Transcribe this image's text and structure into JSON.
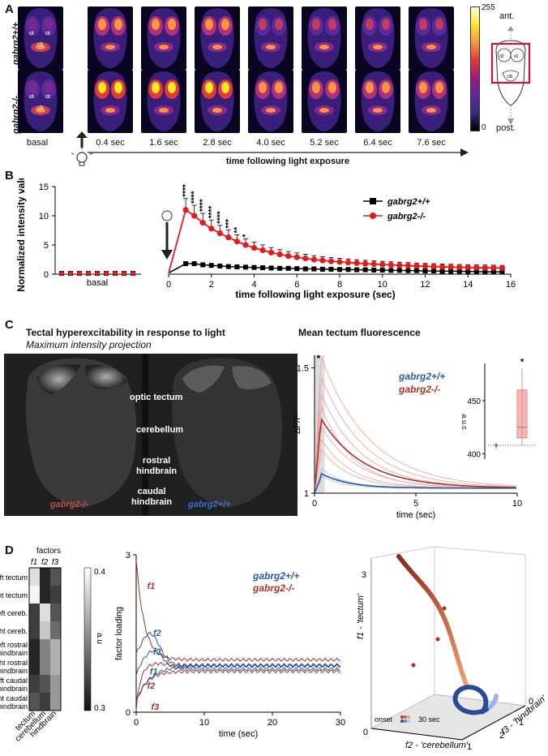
{
  "panels": {
    "a": "A",
    "b": "B",
    "c": "C",
    "d": "D"
  },
  "panel_a": {
    "row_labels": [
      "gabrg2+/+",
      "gabrg2-/-"
    ],
    "time_labels": [
      "basal",
      "0.4 sec",
      "1.6 sec",
      "2.8 sec",
      "4.0 sec",
      "5.2 sec",
      "6.4 sec",
      "7.6 sec"
    ],
    "axis_label": "time following light exposure",
    "colorbar": {
      "max": "255",
      "min": "0"
    },
    "region_labels": {
      "ot": "ot",
      "cb": "cb"
    },
    "schematic": {
      "top": "ant.",
      "bottom": "post.",
      "ot": "ot",
      "cb": "cb"
    },
    "colors": {
      "frame": "#d0103a"
    }
  },
  "panel_b": {
    "chart_data": {
      "type": "line",
      "ylabel": "Normalized intensity value",
      "xlabel": "time following light exposure (sec)",
      "basal_label": "basal",
      "ylim": [
        0,
        15
      ],
      "xlim": [
        0,
        16
      ],
      "yticks": [
        "0",
        "5",
        "10",
        "15"
      ],
      "xticks": [
        "0",
        "2",
        "4",
        "6",
        "8",
        "10",
        "12",
        "14",
        "16"
      ],
      "series": [
        {
          "name": "gabrg2+/+",
          "color": "#000000",
          "x": [
            0.8,
            1.2,
            1.6,
            2.0,
            2.4,
            2.8,
            3.2,
            3.6,
            4.0,
            4.4,
            4.8,
            5.2,
            5.6,
            6.0,
            6.4,
            6.8,
            7.2,
            7.6,
            8.0,
            8.4,
            8.8,
            9.2,
            9.6,
            10.0,
            10.4,
            10.8,
            11.2,
            11.6,
            12.0,
            12.4,
            12.8,
            13.2,
            13.6,
            14.0,
            14.4,
            14.8,
            15.2,
            15.6
          ],
          "y": [
            1.8,
            1.8,
            1.6,
            1.5,
            1.4,
            1.3,
            1.25,
            1.2,
            1.15,
            1.1,
            1.05,
            1.0,
            1.0,
            0.95,
            0.9,
            0.9,
            0.85,
            0.85,
            0.8,
            0.8,
            0.75,
            0.75,
            0.7,
            0.7,
            0.65,
            0.65,
            0.6,
            0.6,
            0.55,
            0.55,
            0.5,
            0.5,
            0.5,
            0.45,
            0.45,
            0.4,
            0.4,
            0.4
          ]
        },
        {
          "name": "gabrg2-/-",
          "color": "#e41a1c",
          "x": [
            0.8,
            1.2,
            1.6,
            2.0,
            2.4,
            2.8,
            3.2,
            3.6,
            4.0,
            4.4,
            4.8,
            5.2,
            5.6,
            6.0,
            6.4,
            6.8,
            7.2,
            7.6,
            8.0,
            8.4,
            8.8,
            9.2,
            9.6,
            10.0,
            10.4,
            10.8,
            11.2,
            11.6,
            12.0,
            12.4,
            12.8,
            13.2,
            13.6,
            14.0,
            14.4,
            14.8,
            15.2,
            15.6
          ],
          "y": [
            11.0,
            10.0,
            8.8,
            7.8,
            7.0,
            6.3,
            5.6,
            5.0,
            4.5,
            4.1,
            3.7,
            3.4,
            3.1,
            2.9,
            2.7,
            2.5,
            2.35,
            2.2,
            2.1,
            2.0,
            1.9,
            1.8,
            1.72,
            1.65,
            1.58,
            1.52,
            1.46,
            1.4,
            1.35,
            1.3,
            1.26,
            1.22,
            1.18,
            1.15,
            1.12,
            1.1,
            1.08,
            1.05
          ]
        }
      ],
      "significance": [
        "****",
        "****",
        "****",
        "****",
        "****",
        "***",
        "**",
        "*"
      ]
    }
  },
  "panel_c": {
    "title": "Tectal hyperexcitability in response to light",
    "subtitle": "Maximum intensity projection",
    "labels": [
      "optic tectum",
      "cerebellum",
      "rostral\nhindbrain",
      "caudal\nhindbrain"
    ],
    "left_geno": "gabrg2-/-",
    "right_geno": "gabrg2+/+",
    "chart_data": {
      "type": "line",
      "title": "Mean tectum fluorescence",
      "ylabel": "ΔF/F",
      "xlabel": "time (sec)",
      "xticks": [
        "0",
        "5",
        "10"
      ],
      "yticks": [
        "1",
        "1.5"
      ],
      "legend": [
        "gabrg2+/+",
        "gabrg2-/-"
      ],
      "colors": {
        "wt": "#2c5aa0",
        "ko": "#a93226"
      },
      "sig": "*",
      "inset": {
        "ylabel": "a.u.c",
        "yticks": [
          "400",
          "450"
        ],
        "sig": "*"
      }
    }
  },
  "panel_d": {
    "heatmap": {
      "title": "factors",
      "cols": [
        "f1",
        "f2",
        "f3"
      ],
      "rows": [
        "left tectum",
        "right tectum",
        "left cereb.",
        "right cereb.",
        "left rostral hindbrain",
        "right rostral hindbrain",
        "left caudal hindbrain",
        "right caudal hindbrain"
      ],
      "bottom_labels": [
        "tectum",
        "cerebellum",
        "hindbrain"
      ],
      "colorbar": {
        "max": "0.4",
        "min": "0.3",
        "label": "a.u"
      },
      "values": [
        [
          0.39,
          0.31,
          0.33
        ],
        [
          0.4,
          0.31,
          0.32
        ],
        [
          0.32,
          0.39,
          0.33
        ],
        [
          0.32,
          0.38,
          0.34
        ],
        [
          0.31,
          0.35,
          0.37
        ],
        [
          0.31,
          0.35,
          0.37
        ],
        [
          0.32,
          0.33,
          0.36
        ],
        [
          0.33,
          0.32,
          0.36
        ]
      ]
    },
    "chart_data": {
      "type": "line",
      "ylabel": "factor loading",
      "xlabel": "time (sec)",
      "xticks": [
        "0",
        "10",
        "20",
        "30"
      ],
      "yticks": [
        "0",
        "3"
      ],
      "legend": [
        "gabrg2+/+",
        "gabrg2-/-"
      ],
      "curve_labels": {
        "f1": "f1",
        "f2": "f2",
        "f3": "f3"
      }
    },
    "plot3d": {
      "z_label": "f1 - 'tectum'",
      "x_label": "f2 - 'cerebellum'",
      "y_label": "f3 - 'hindbrain'",
      "x_ticks": [
        "0",
        "1"
      ],
      "y_ticks": [
        "0",
        "1",
        "2"
      ],
      "z_ticks": [
        "3"
      ],
      "legend": {
        "start": "onset",
        "end": "30 sec"
      }
    }
  }
}
